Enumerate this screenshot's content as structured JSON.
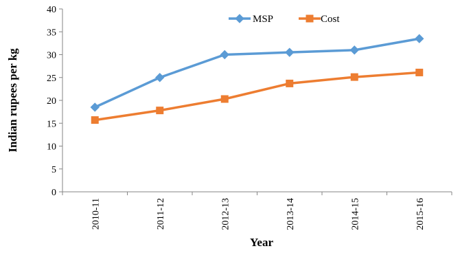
{
  "chart_data": {
    "type": "line",
    "title": "",
    "xlabel": "Year",
    "ylabel": "Indian rupees per kg",
    "categories": [
      "2010-11",
      "2011-12",
      "2012-13",
      "2013-14",
      "2014-15",
      "2015-16"
    ],
    "ylim": [
      0,
      40
    ],
    "yticks": [
      0,
      5,
      10,
      15,
      20,
      25,
      30,
      35,
      40
    ],
    "grid": false,
    "legend_position": "top-center",
    "series": [
      {
        "name": "MSP",
        "values": [
          18.5,
          25.0,
          30.0,
          30.5,
          31.0,
          33.5
        ],
        "color": "#5B9BD5",
        "marker": "diamond"
      },
      {
        "name": "Cost",
        "values": [
          15.7,
          17.8,
          20.3,
          23.7,
          25.1,
          26.1
        ],
        "color": "#ED7D31",
        "marker": "square"
      }
    ]
  }
}
